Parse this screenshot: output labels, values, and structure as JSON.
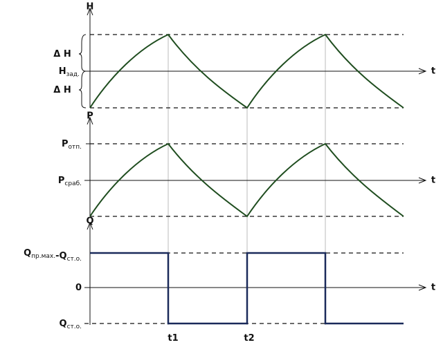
{
  "panels": [
    {
      "axis": "H",
      "time": "t",
      "labels": [
        [
          [
            "Δ H",
            ""
          ]
        ],
        [
          [
            "H",
            "зад."
          ]
        ],
        [
          [
            "Δ H",
            ""
          ]
        ]
      ]
    },
    {
      "axis": "P",
      "time": "t",
      "labels": [
        [
          [
            "P",
            "отп."
          ]
        ],
        [
          [
            "P",
            "сраб."
          ]
        ]
      ]
    },
    {
      "axis": "Q",
      "time": "t",
      "labels": [
        [
          [
            "Q",
            "пр.мах."
          ],
          [
            "-Q",
            "ст.о."
          ]
        ],
        [
          [
            "0",
            ""
          ]
        ],
        [
          [
            "Q",
            "ст.о."
          ]
        ]
      ]
    }
  ],
  "time_marks": [
    [
      "t",
      "1"
    ],
    [
      "t",
      "2"
    ]
  ]
}
